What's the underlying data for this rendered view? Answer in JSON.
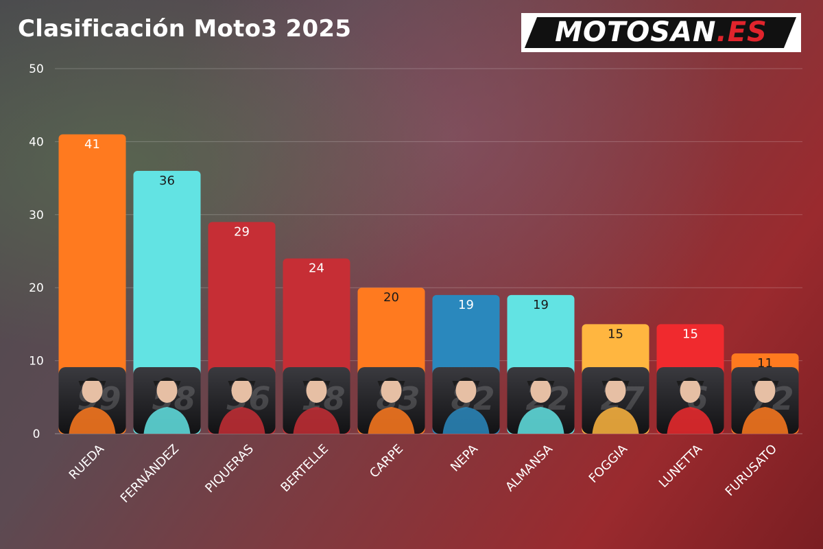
{
  "page": {
    "title": "Clasificación Moto3 2025",
    "logo": {
      "main": "MOTOSAN",
      "accent": ".ES"
    }
  },
  "chart_data": {
    "type": "bar",
    "title": "Clasificación Moto3 2025",
    "xlabel": "",
    "ylabel": "",
    "ylim": [
      0,
      50
    ],
    "yticks": [
      0,
      10,
      20,
      30,
      40,
      50
    ],
    "grid": true,
    "categories": [
      "RUEDA",
      "FERNÁNDEZ",
      "PIQUERAS",
      "BERTELLE",
      "CARPE",
      "NEPA",
      "ALMANSA",
      "FOGGIA",
      "LUNETTA",
      "FURUSATO"
    ],
    "values": [
      41,
      36,
      29,
      24,
      20,
      19,
      19,
      15,
      15,
      11
    ],
    "colors": [
      "#ff7a1f",
      "#62e3e3",
      "#c62e35",
      "#c62e35",
      "#ff7a1f",
      "#2a88bd",
      "#62e3e3",
      "#ffb640",
      "#f02a2e",
      "#ff7a1f"
    ],
    "value_label_colors": [
      "#ffffff",
      "#1a1a1a",
      "#ffffff",
      "#ffffff",
      "#1a1a1a",
      "#ffffff",
      "#1a1a1a",
      "#1a1a1a",
      "#ffffff",
      "#1a1a1a"
    ],
    "rider_numbers": [
      "99",
      "58",
      "36",
      "18",
      "83",
      "82",
      "22",
      "27",
      "6",
      "72"
    ]
  }
}
